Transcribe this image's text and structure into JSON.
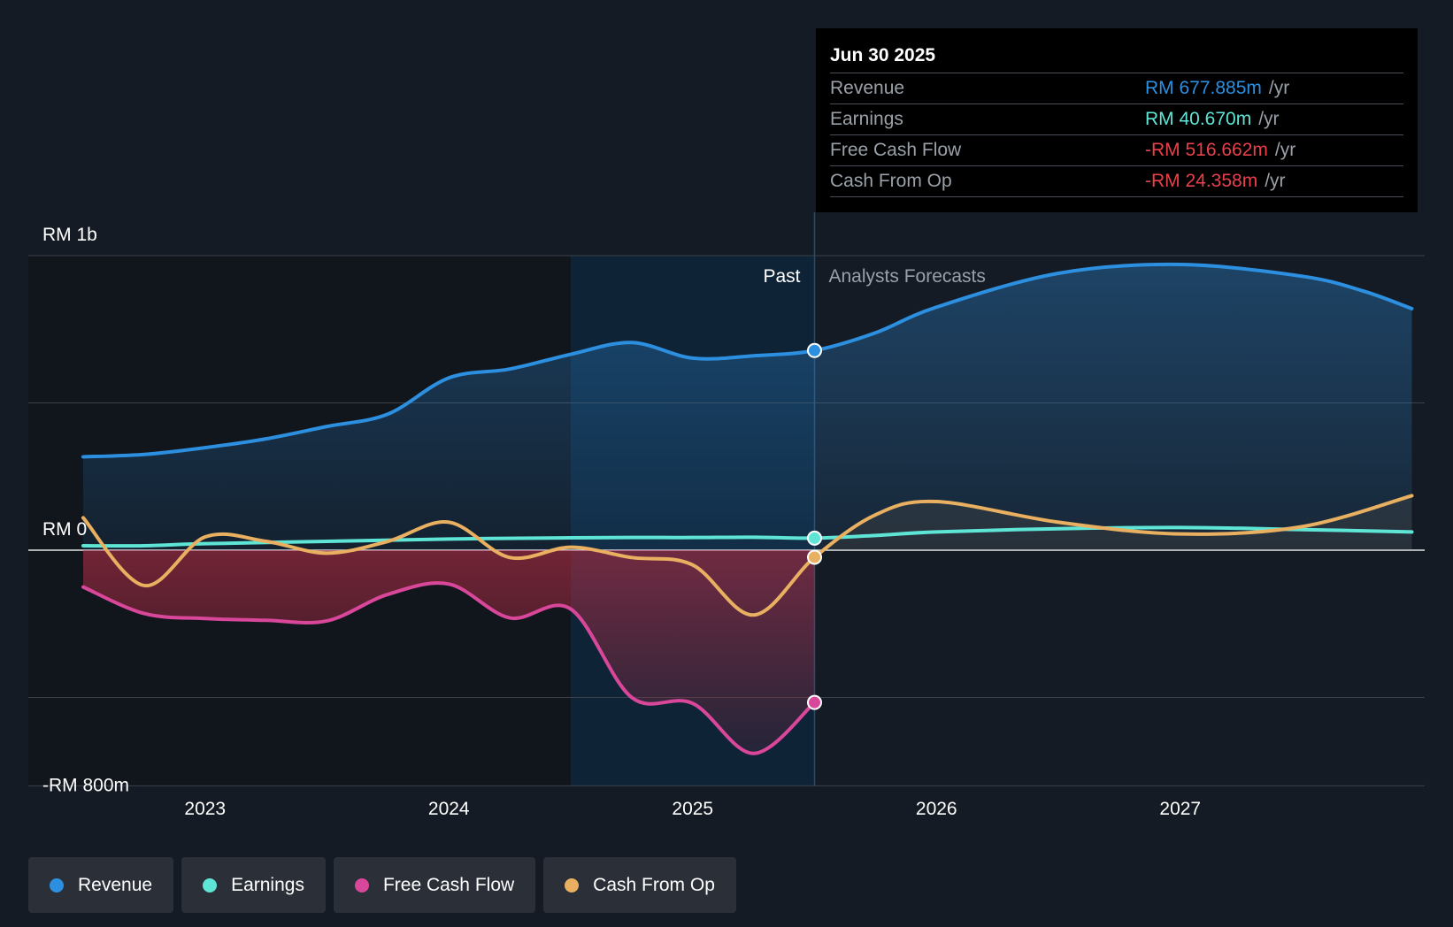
{
  "chart_data": {
    "type": "line",
    "currency": "RM",
    "y_axis": {
      "labels": [
        "RM 1b",
        "RM 0",
        "-RM 800m"
      ],
      "ylim": [
        -800,
        1000
      ]
    },
    "x_axis": {
      "ticks": [
        "2023",
        "2024",
        "2025",
        "2026",
        "2027"
      ]
    },
    "regions": {
      "past_label": "Past",
      "forecast_label": "Analysts Forecasts",
      "divider_date": "2025-06-30"
    },
    "series": [
      {
        "name": "Revenue",
        "color": "#2d8fe0",
        "points": [
          [
            2022.5,
            317
          ],
          [
            2022.75,
            325
          ],
          [
            2023.0,
            348
          ],
          [
            2023.25,
            378
          ],
          [
            2023.5,
            420
          ],
          [
            2023.75,
            462
          ],
          [
            2024.0,
            585
          ],
          [
            2024.25,
            615
          ],
          [
            2024.5,
            665
          ],
          [
            2024.75,
            705
          ],
          [
            2025.0,
            652
          ],
          [
            2025.25,
            660
          ],
          [
            2025.5,
            678
          ],
          [
            2025.75,
            738
          ],
          [
            2026.0,
            825
          ],
          [
            2026.5,
            940
          ],
          [
            2027.0,
            970
          ],
          [
            2027.5,
            930
          ],
          [
            2027.75,
            880
          ],
          [
            2027.95,
            820
          ]
        ]
      },
      {
        "name": "Earnings",
        "color": "#5ee5d5",
        "points": [
          [
            2022.5,
            15
          ],
          [
            2022.75,
            15
          ],
          [
            2023.0,
            22
          ],
          [
            2023.5,
            30
          ],
          [
            2024.0,
            38
          ],
          [
            2024.5,
            42
          ],
          [
            2024.75,
            43
          ],
          [
            2025.0,
            43
          ],
          [
            2025.25,
            44
          ],
          [
            2025.5,
            41
          ],
          [
            2025.75,
            50
          ],
          [
            2026.0,
            62
          ],
          [
            2026.5,
            73
          ],
          [
            2027.0,
            77
          ],
          [
            2027.5,
            70
          ],
          [
            2027.95,
            62
          ]
        ]
      },
      {
        "name": "Free Cash Flow",
        "color": "#d9479a",
        "points": [
          [
            2022.5,
            -125
          ],
          [
            2022.75,
            -215
          ],
          [
            2023.0,
            -232
          ],
          [
            2023.25,
            -238
          ],
          [
            2023.5,
            -240
          ],
          [
            2023.75,
            -150
          ],
          [
            2024.0,
            -115
          ],
          [
            2024.25,
            -230
          ],
          [
            2024.5,
            -200
          ],
          [
            2024.75,
            -500
          ],
          [
            2025.0,
            -520
          ],
          [
            2025.25,
            -690
          ],
          [
            2025.5,
            -517
          ]
        ]
      },
      {
        "name": "Cash From Op",
        "color": "#e8b060",
        "points": [
          [
            2022.5,
            110
          ],
          [
            2022.75,
            -120
          ],
          [
            2023.0,
            45
          ],
          [
            2023.25,
            30
          ],
          [
            2023.5,
            -10
          ],
          [
            2023.75,
            30
          ],
          [
            2024.0,
            95
          ],
          [
            2024.25,
            -25
          ],
          [
            2024.5,
            10
          ],
          [
            2024.75,
            -25
          ],
          [
            2025.0,
            -50
          ],
          [
            2025.25,
            -220
          ],
          [
            2025.5,
            -24
          ],
          [
            2025.75,
            120
          ],
          [
            2026.0,
            165
          ],
          [
            2026.5,
            95
          ],
          [
            2027.0,
            55
          ],
          [
            2027.5,
            80
          ],
          [
            2027.95,
            185
          ]
        ]
      }
    ]
  },
  "tooltip": {
    "date": "Jun 30 2025",
    "rows": [
      {
        "label": "Revenue",
        "value": "RM 677.885m",
        "unit": "/yr",
        "color": "#2d8fe0"
      },
      {
        "label": "Earnings",
        "value": "RM 40.670m",
        "unit": "/yr",
        "color": "#5ee5d5"
      },
      {
        "label": "Free Cash Flow",
        "value": "-RM 516.662m",
        "unit": "/yr",
        "color": "#e8404b"
      },
      {
        "label": "Cash From Op",
        "value": "-RM 24.358m",
        "unit": "/yr",
        "color": "#e8404b"
      }
    ]
  },
  "legend": [
    {
      "label": "Revenue",
      "color": "#2d8fe0"
    },
    {
      "label": "Earnings",
      "color": "#5ee5d5"
    },
    {
      "label": "Free Cash Flow",
      "color": "#d9479a"
    },
    {
      "label": "Cash From Op",
      "color": "#e8b060"
    }
  ]
}
